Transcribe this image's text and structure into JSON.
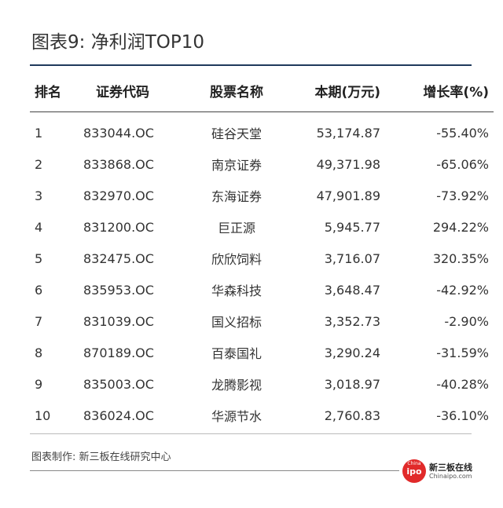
{
  "title": "图表9: 净利润TOP10",
  "table": {
    "headers": [
      "排名",
      "证券代码",
      "股票名称",
      "本期(万元)",
      "增长率(%)"
    ],
    "rows": [
      [
        "1",
        "833044.OC",
        "硅谷天堂",
        "53,174.87",
        "-55.40%"
      ],
      [
        "2",
        "833868.OC",
        "南京证券",
        "49,371.98",
        "-65.06%"
      ],
      [
        "3",
        "832970.OC",
        "东海证券",
        "47,901.89",
        "-73.92%"
      ],
      [
        "4",
        "831200.OC",
        "巨正源",
        "5,945.77",
        "294.22%"
      ],
      [
        "5",
        "832475.OC",
        "欣欣饲料",
        "3,716.07",
        "320.35%"
      ],
      [
        "6",
        "835953.OC",
        "华森科技",
        "3,648.47",
        "-42.92%"
      ],
      [
        "7",
        "831039.OC",
        "国义招标",
        "3,352.73",
        "-2.90%"
      ],
      [
        "8",
        "870189.OC",
        "百泰国礼",
        "3,290.24",
        "-31.59%"
      ],
      [
        "9",
        "835003.OC",
        "龙腾影视",
        "3,018.97",
        "-40.28%"
      ],
      [
        "10",
        "836024.OC",
        "华源节水",
        "2,760.83",
        "-36.10%"
      ]
    ]
  },
  "footer": "图表制作: 新三板在线研究中心",
  "logo": {
    "china": "China",
    "ipo": "ipo",
    "name": "新三板在线",
    "url": "Chinaipo.com"
  },
  "colors": {
    "title_rule": "#1f3a5c",
    "logo_red": "#e12a2a"
  }
}
